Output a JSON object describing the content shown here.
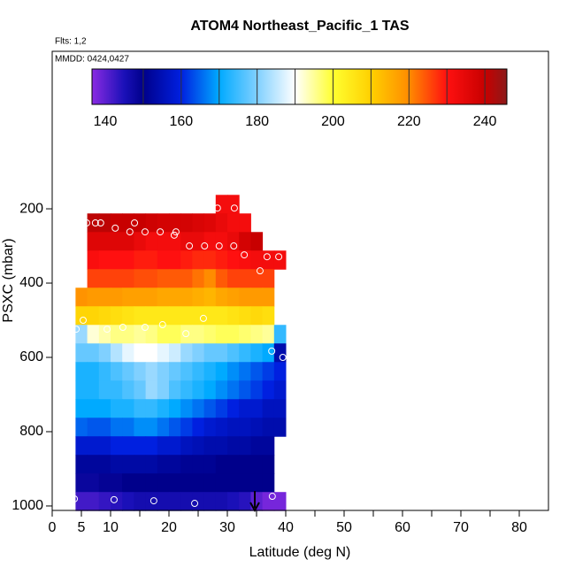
{
  "chart_data": {
    "type": "heatmap",
    "title": "ATOM4 Northeast_Pacific_1 TAS",
    "subtitle": "Flts: 1,2",
    "annotation": "MMDD: 0424,0427",
    "xlabel": "Latitude (deg N)",
    "ylabel": "PSXC (mbar)",
    "xlim": [
      0,
      85
    ],
    "ylim": [
      1012,
      -224
    ],
    "xticks": [
      0,
      5,
      10,
      20,
      30,
      40,
      50,
      60,
      70,
      80
    ],
    "xminor_ticks": [
      15,
      25,
      35,
      45,
      55,
      65,
      75
    ],
    "yticks": [
      200,
      400,
      600,
      800,
      1000
    ],
    "lat_bins": [
      4,
      6,
      8,
      10,
      12,
      14,
      16,
      18,
      20,
      22,
      24,
      26,
      28,
      30,
      32,
      34,
      36,
      38,
      40
    ],
    "pressure_bins": [
      162.5,
      212.5,
      262.5,
      312.5,
      362.5,
      412.5,
      462.5,
      512.5,
      562.5,
      612.5,
      662.5,
      712.5,
      762.5,
      812.5,
      862.5,
      912.5,
      962.5,
      1012.5
    ],
    "values": [
      [
        null,
        null,
        null,
        null,
        null,
        null,
        null,
        null,
        null,
        null,
        null,
        null,
        232,
        232,
        null,
        null,
        null,
        null
      ],
      [
        null,
        241,
        241,
        240,
        240,
        240,
        239,
        238,
        238,
        238,
        237,
        236,
        234,
        232,
        232,
        null,
        null,
        null
      ],
      [
        null,
        236,
        236,
        236,
        236,
        234,
        232,
        232,
        232,
        234,
        234,
        232,
        232,
        234,
        238,
        240,
        null,
        null
      ],
      [
        null,
        231,
        230,
        230,
        230,
        229,
        229,
        230,
        230,
        229,
        228,
        228,
        229,
        230,
        231,
        232,
        232,
        232
      ],
      [
        null,
        226,
        226,
        226,
        226,
        225,
        225,
        224,
        224,
        224,
        222,
        220,
        224,
        226,
        226,
        226,
        226,
        null
      ],
      [
        219,
        218,
        218,
        218,
        217,
        217,
        217,
        216,
        216,
        216,
        215,
        214,
        216,
        217,
        218,
        218,
        218,
        null
      ],
      [
        209,
        209,
        208,
        207,
        206,
        205,
        205,
        205,
        205,
        205,
        205,
        205,
        205,
        206,
        207,
        208,
        207,
        null
      ],
      [
        182,
        192,
        194,
        196,
        196,
        195,
        196,
        198,
        198,
        196,
        196,
        197,
        198,
        198,
        197,
        196,
        195,
        174
      ],
      [
        178,
        178,
        180,
        184,
        188,
        190,
        190,
        188,
        186,
        182,
        180,
        178,
        178,
        176,
        174,
        172,
        170,
        154
      ],
      [
        172,
        172,
        174,
        176,
        178,
        180,
        182,
        180,
        178,
        176,
        174,
        172,
        170,
        168,
        166,
        164,
        162,
        160
      ],
      [
        172,
        172,
        174,
        174,
        176,
        178,
        182,
        180,
        176,
        174,
        172,
        170,
        168,
        166,
        164,
        162,
        160,
        158
      ],
      [
        170,
        170,
        170,
        172,
        172,
        174,
        174,
        172,
        170,
        168,
        166,
        164,
        162,
        160,
        158,
        158,
        156,
        156
      ],
      [
        165,
        164,
        164,
        166,
        166,
        168,
        168,
        166,
        164,
        162,
        160,
        158,
        157,
        156,
        156,
        155,
        154,
        154
      ],
      [
        158,
        158,
        158,
        160,
        160,
        160,
        160,
        158,
        158,
        156,
        155,
        154,
        154,
        153,
        153,
        152,
        152,
        null
      ],
      [
        152,
        152,
        152,
        153,
        153,
        153,
        153,
        152,
        152,
        151,
        151,
        151,
        150,
        150,
        150,
        150,
        150,
        null
      ],
      [
        148,
        148,
        149,
        149,
        150,
        150,
        150,
        150,
        150,
        150,
        150,
        150,
        150,
        150,
        150,
        150,
        150,
        null
      ],
      [
        142,
        142,
        143,
        144,
        145,
        146,
        146,
        146,
        146,
        146,
        146,
        146,
        146,
        145,
        144,
        140,
        138,
        138
      ]
    ],
    "points": {
      "x": [
        5.9,
        7.4,
        8.3,
        14.1,
        10.8,
        13.3,
        15.9,
        18.5,
        20.9,
        21.2,
        28.3,
        31.2,
        23.5,
        26.1,
        28.6,
        31.1,
        32.9,
        36.8,
        38.8,
        35.6,
        5.3,
        25.9,
        4.1,
        9.4,
        12.1,
        15.9,
        18.9,
        22.9,
        37.6,
        39.5,
        3.8,
        10.6,
        17.4,
        24.4,
        37.7
      ],
      "y": [
        238,
        238,
        238,
        238,
        252,
        262,
        262,
        262,
        271,
        262,
        198,
        198,
        300,
        300,
        300,
        300,
        324,
        329,
        329,
        367,
        500,
        495,
        524,
        524,
        519,
        519,
        512,
        536,
        583,
        600,
        981,
        983,
        986,
        993,
        974
      ]
    },
    "colorbar": {
      "lim": [
        136.5,
        245.8
      ],
      "ticks": [
        140,
        160,
        180,
        200,
        220,
        240
      ],
      "breaks": [
        150,
        160,
        170,
        180,
        190,
        200,
        210,
        220,
        230,
        240
      ],
      "stop_values": [
        136.5,
        145,
        150,
        160,
        170,
        180,
        190,
        200,
        210,
        220,
        230,
        240,
        245.8
      ],
      "stop_colors": [
        "#8a2be2",
        "#1a10b8",
        "#00008b",
        "#0020e0",
        "#00aaff",
        "#80d0ff",
        "#ffffff",
        "#ffff30",
        "#ffd000",
        "#ff8c00",
        "#ff1010",
        "#c80000",
        "#8b1a1a"
      ]
    }
  }
}
